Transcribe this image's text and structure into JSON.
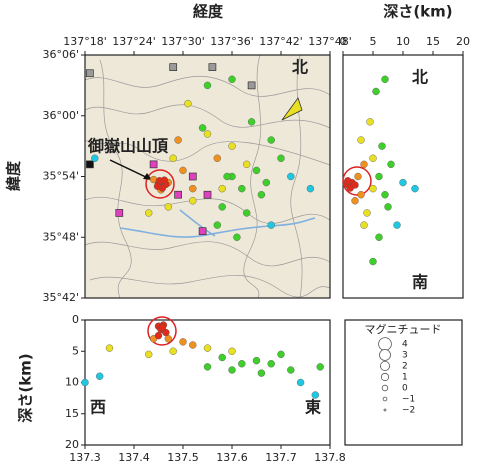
{
  "chart_data": [
    {
      "type": "scatter",
      "xlabel": "経度",
      "ylabel": "緯度",
      "annotations": [
        "御嶽山山頂",
        "北"
      ],
      "xlim": [
        137.3,
        137.8
      ],
      "ylim": [
        35.7,
        36.1
      ],
      "xticks": [
        {
          "value": 137.3,
          "label": "137°18'"
        },
        {
          "value": 137.4,
          "label": "137°24'"
        },
        {
          "value": 137.5,
          "label": "137°30'"
        },
        {
          "value": 137.6,
          "label": "137°36'"
        },
        {
          "value": 137.7,
          "label": "137°42'"
        },
        {
          "value": 137.8,
          "label": "137°48'"
        }
      ],
      "yticks": [
        {
          "value": 35.7,
          "label": "35°42'"
        },
        {
          "value": 35.8,
          "label": "35°48'"
        },
        {
          "value": 35.9,
          "label": "35°54'"
        },
        {
          "value": 36.0,
          "label": "36°00'"
        },
        {
          "value": 36.1,
          "label": "36°06'"
        }
      ],
      "series": [
        {
          "color": "#9a9a9a",
          "marker": "square",
          "x": [
            137.31,
            137.48,
            137.56,
            137.64
          ],
          "y": [
            36.07,
            36.08,
            36.08,
            36.05
          ]
        },
        {
          "color": "#e040c0",
          "marker": "square",
          "x": [
            137.44,
            137.52,
            137.49,
            137.55,
            137.37,
            137.54
          ],
          "y": [
            35.92,
            35.9,
            35.87,
            35.87,
            35.84,
            35.81
          ]
        },
        {
          "color": "#111111",
          "marker": "square",
          "x": [
            137.31
          ],
          "y": [
            35.92
          ]
        },
        {
          "color": "#1fc8e0",
          "x": [
            137.72,
            137.76,
            137.68,
            137.32
          ],
          "y": [
            35.9,
            35.88,
            35.82,
            35.93
          ]
        },
        {
          "color": "#3ecf2a",
          "x": [
            137.6,
            137.62,
            137.65,
            137.66,
            137.58,
            137.63,
            137.7,
            137.68,
            137.55,
            137.6,
            137.64,
            137.57,
            137.61,
            137.59,
            137.67,
            137.54
          ],
          "y": [
            35.9,
            35.88,
            35.91,
            35.87,
            35.85,
            35.84,
            35.93,
            35.96,
            36.05,
            36.06,
            35.99,
            35.82,
            35.8,
            35.9,
            35.89,
            35.98
          ]
        },
        {
          "color": "#e8e020",
          "x": [
            137.48,
            137.55,
            137.6,
            137.52,
            137.47,
            137.58,
            137.63,
            137.51,
            137.43
          ],
          "y": [
            35.93,
            35.97,
            35.95,
            35.86,
            35.85,
            35.88,
            35.92,
            36.02,
            35.84
          ]
        },
        {
          "color": "#f09020",
          "x": [
            137.47,
            137.44,
            137.455,
            137.5,
            137.52,
            137.57,
            137.49
          ],
          "y": [
            35.89,
            35.895,
            35.878,
            35.91,
            35.88,
            35.93,
            35.96
          ]
        },
        {
          "color": "#e02a1a",
          "x": [
            137.45,
            137.455,
            137.46,
            137.465,
            137.452,
            137.458,
            137.462,
            137.448
          ],
          "y": [
            35.888,
            35.885,
            35.89,
            35.887,
            35.893,
            35.881,
            35.894,
            35.884
          ]
        }
      ]
    },
    {
      "type": "scatter",
      "xlabel": "深さ(km)",
      "annotations": [
        "北",
        "南"
      ],
      "xlim": [
        0,
        20
      ],
      "ylim": [
        35.7,
        36.1
      ],
      "xticks": [
        0,
        5,
        10,
        15,
        20
      ],
      "series": [
        {
          "color": "#1fc8e0",
          "x": [
            10,
            12,
            9
          ],
          "y": [
            35.89,
            35.88,
            35.82
          ]
        },
        {
          "color": "#3ecf2a",
          "x": [
            6,
            7,
            6.5,
            5.5,
            7,
            8,
            6,
            5,
            7.5
          ],
          "y": [
            35.9,
            35.87,
            35.95,
            36.04,
            36.06,
            35.92,
            35.8,
            35.76,
            35.85
          ]
        },
        {
          "color": "#e8e020",
          "x": [
            3,
            4,
            5,
            4.5,
            3.5,
            5
          ],
          "y": [
            35.96,
            35.84,
            35.93,
            35.99,
            35.82,
            35.88
          ]
        },
        {
          "color": "#f09020",
          "x": [
            2.5,
            3,
            2,
            3.5
          ],
          "y": [
            35.9,
            35.87,
            35.86,
            35.92
          ]
        },
        {
          "color": "#e02a1a",
          "x": [
            0.5,
            1,
            1.5,
            0.8,
            1.2,
            2
          ],
          "y": [
            35.888,
            35.885,
            35.89,
            35.893,
            35.881,
            35.886
          ]
        }
      ]
    },
    {
      "type": "scatter",
      "ylabel": "深さ(km)",
      "annotations": [
        "西",
        "東"
      ],
      "xlim": [
        137.3,
        137.8
      ],
      "ylim": [
        20,
        0
      ],
      "xticks": [
        137.3,
        137.4,
        137.5,
        137.6,
        137.7,
        137.8
      ],
      "yticks": [
        0,
        5,
        10,
        15,
        20
      ],
      "series": [
        {
          "color": "#1fc8e0",
          "x": [
            137.74,
            137.77,
            137.3,
            137.33
          ],
          "y": [
            10,
            12,
            10,
            9
          ]
        },
        {
          "color": "#3ecf2a",
          "x": [
            137.58,
            137.62,
            137.65,
            137.68,
            137.7,
            137.6,
            137.55,
            137.72,
            137.78,
            137.66
          ],
          "y": [
            6,
            7,
            6.5,
            7,
            5.5,
            8,
            7.5,
            8,
            7.5,
            8.5
          ]
        },
        {
          "color": "#e8e020",
          "x": [
            137.48,
            137.55,
            137.6,
            137.43,
            137.35
          ],
          "y": [
            5,
            4.5,
            5,
            5.5,
            4.5
          ]
        },
        {
          "color": "#f09020",
          "x": [
            137.47,
            137.5,
            137.44,
            137.52
          ],
          "y": [
            3,
            3.5,
            3,
            4
          ]
        },
        {
          "color": "#e02a1a",
          "x": [
            137.45,
            137.455,
            137.46,
            137.465,
            137.45,
            137.458
          ],
          "y": [
            1,
            1.5,
            0.8,
            2,
            2.5,
            1.2
          ]
        }
      ]
    }
  ],
  "legend": {
    "title": "マグニチュード",
    "magnitudes": [
      4,
      3,
      2,
      1,
      0,
      {
        "value": -1,
        "label": "−1"
      },
      {
        "value": -2,
        "label": "−2"
      }
    ]
  }
}
